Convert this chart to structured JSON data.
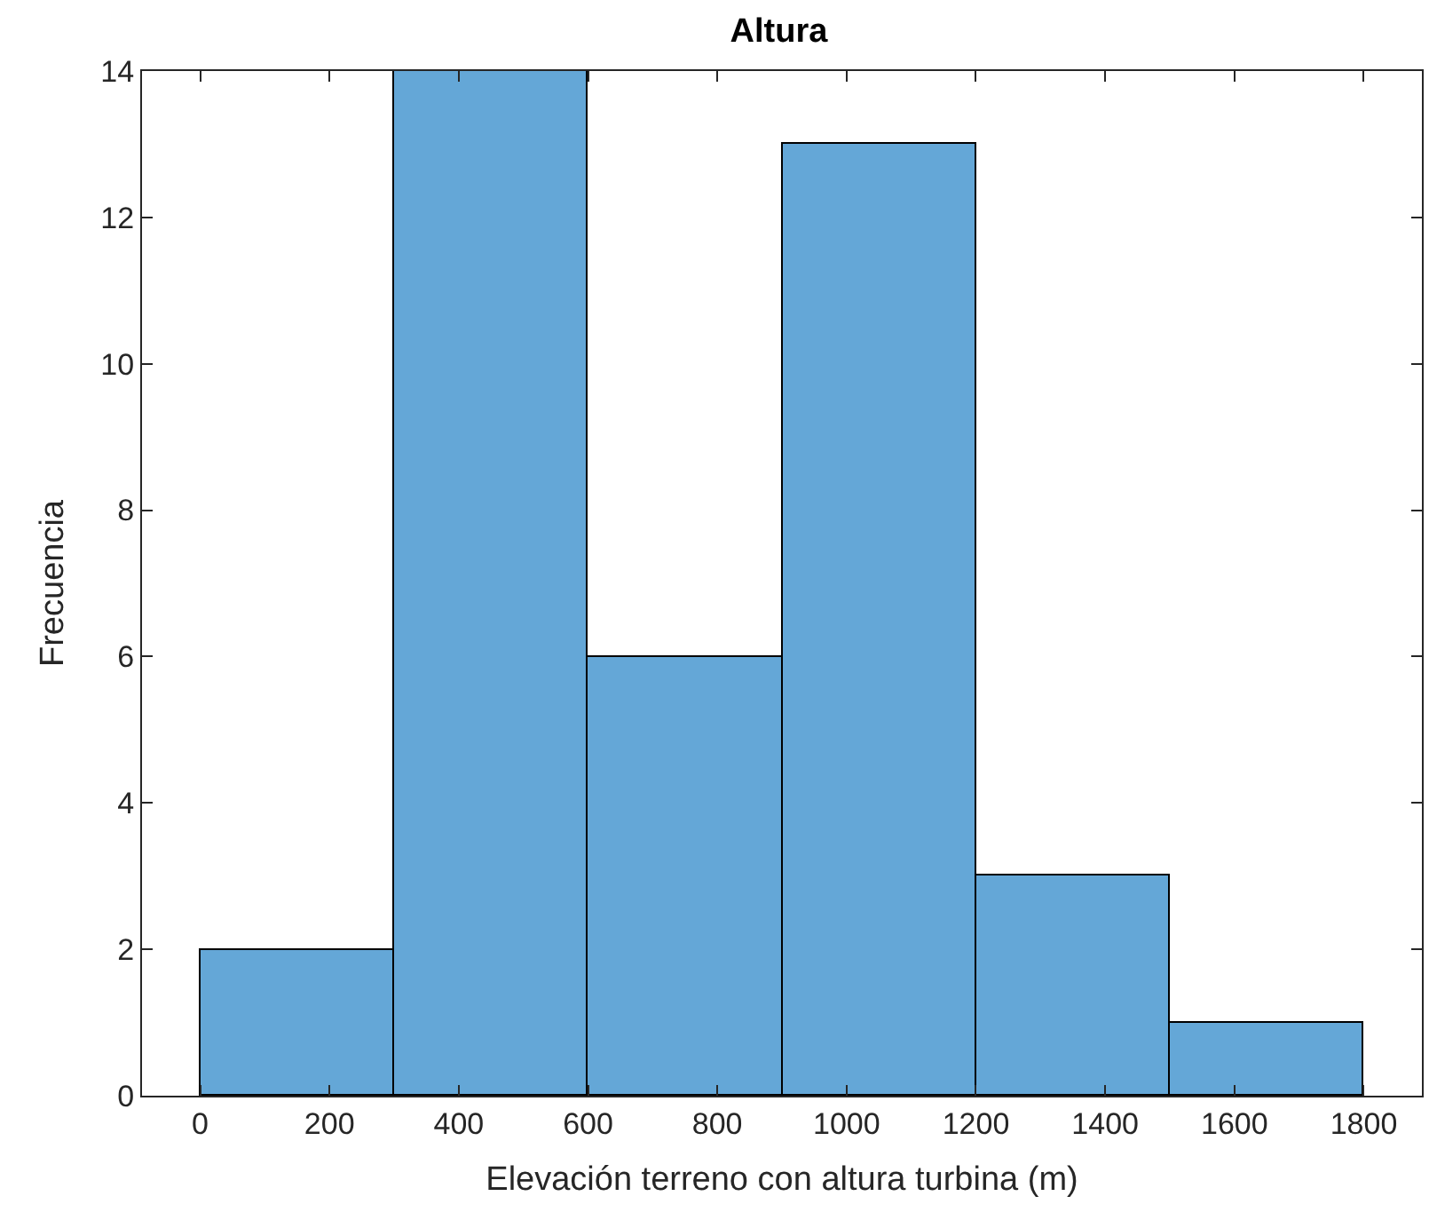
{
  "chart_data": {
    "type": "histogram",
    "title": "Altura",
    "xlabel": "Elevación terreno con altura turbina (m)",
    "ylabel": "Frecuencia",
    "bins": [
      0,
      300,
      600,
      900,
      1200,
      1500,
      1800
    ],
    "values": [
      2,
      14,
      6,
      13,
      3,
      1
    ],
    "color": "#64a7d7",
    "xlim": [
      -90,
      1890
    ],
    "xticks": [
      0,
      200,
      400,
      600,
      800,
      1000,
      1200,
      1400,
      1600,
      1800
    ],
    "ylim": [
      0,
      14
    ],
    "yticks": [
      0,
      2,
      4,
      6,
      8,
      10,
      12,
      14
    ],
    "legend": false
  }
}
